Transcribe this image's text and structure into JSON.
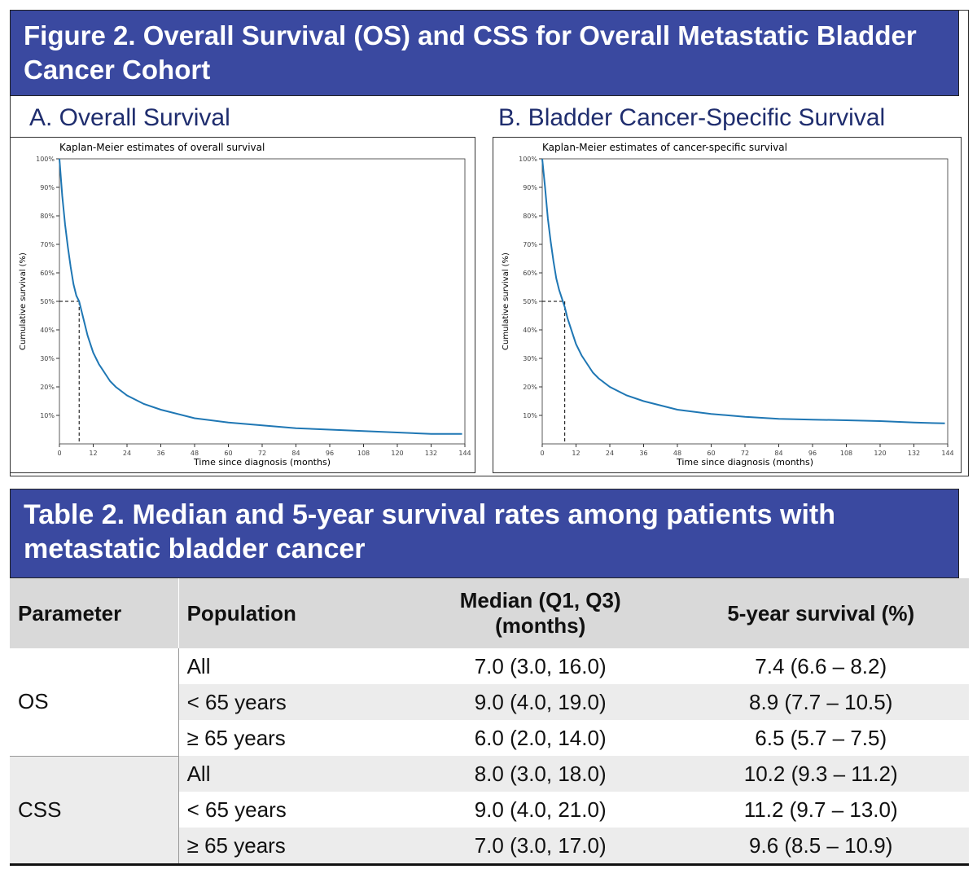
{
  "figure_title": "Figure 2. Overall Survival (OS) and CSS for Overall Metastatic Bladder Cancer Cohort",
  "chart_data": [
    {
      "type": "line",
      "panel_title": "A. Overall Survival",
      "title": "Kaplan-Meier estimates of overall survival",
      "xlabel": "Time since diagnosis (months)",
      "ylabel": "Cumulative survival (%)",
      "color": "#1f77b4",
      "x": [
        0,
        1,
        2,
        3,
        4,
        5,
        6,
        7,
        8,
        9,
        10,
        11,
        12,
        14,
        16,
        18,
        20,
        24,
        30,
        36,
        48,
        60,
        72,
        84,
        96,
        108,
        120,
        132,
        143
      ],
      "values": [
        100,
        87,
        77,
        69,
        62,
        56,
        52,
        50,
        46,
        42,
        38,
        35,
        32,
        28,
        25,
        22,
        20,
        17,
        14,
        12,
        9,
        7.5,
        6.5,
        5.5,
        5,
        4.5,
        4,
        3.5,
        3.5
      ],
      "median_line": {
        "x": 7,
        "y": 50
      },
      "xlim": [
        0,
        144
      ],
      "ylim": [
        0,
        100
      ],
      "xticks": [
        0,
        12,
        24,
        36,
        48,
        60,
        72,
        84,
        96,
        108,
        120,
        132,
        144
      ],
      "yticks": [
        {
          "value": 10,
          "label": "10%"
        },
        {
          "value": 20,
          "label": "20%"
        },
        {
          "value": 30,
          "label": "30%"
        },
        {
          "value": 40,
          "label": "40%"
        },
        {
          "value": 50,
          "label": "50%"
        },
        {
          "value": 60,
          "label": "60%"
        },
        {
          "value": 70,
          "label": "70%"
        },
        {
          "value": 80,
          "label": "80%"
        },
        {
          "value": 90,
          "label": "90%"
        },
        {
          "value": 100,
          "label": "100%"
        }
      ]
    },
    {
      "type": "line",
      "panel_title": "B. Bladder Cancer-Specific Survival",
      "title": "Kaplan-Meier estimates of cancer-specific survival",
      "xlabel": "Time since diagnosis (months)",
      "ylabel": "Cumulative survival (%)",
      "color": "#1f77b4",
      "x": [
        0,
        1,
        2,
        3,
        4,
        5,
        6,
        7,
        8,
        9,
        10,
        11,
        12,
        14,
        16,
        18,
        20,
        24,
        30,
        36,
        48,
        60,
        72,
        84,
        96,
        108,
        120,
        132,
        143
      ],
      "values": [
        100,
        90,
        79,
        71,
        64,
        58,
        54,
        51,
        48,
        44,
        41,
        38,
        35,
        31,
        28,
        25,
        23,
        20,
        17,
        15,
        12,
        10.5,
        9.5,
        8.8,
        8.5,
        8.3,
        8,
        7.5,
        7.2
      ],
      "median_line": {
        "x": 8,
        "y": 50
      },
      "xlim": [
        0,
        144
      ],
      "ylim": [
        0,
        100
      ],
      "xticks": [
        0,
        12,
        24,
        36,
        48,
        60,
        72,
        84,
        96,
        108,
        120,
        132,
        144
      ],
      "yticks": [
        {
          "value": 10,
          "label": "10%"
        },
        {
          "value": 20,
          "label": "20%"
        },
        {
          "value": 30,
          "label": "30%"
        },
        {
          "value": 40,
          "label": "40%"
        },
        {
          "value": 50,
          "label": "50%"
        },
        {
          "value": 60,
          "label": "60%"
        },
        {
          "value": 70,
          "label": "70%"
        },
        {
          "value": 80,
          "label": "80%"
        },
        {
          "value": 90,
          "label": "90%"
        },
        {
          "value": 100,
          "label": "100%"
        }
      ]
    }
  ],
  "table_title": "Table 2. Median and 5-year survival rates among patients with metastatic bladder cancer",
  "table": {
    "header": [
      "Parameter",
      "Population",
      "Median (Q1, Q3) (months)",
      "5-year survival (%)"
    ],
    "groups": [
      {
        "parameter": "OS",
        "rows": [
          [
            "All",
            "7.0 (3.0, 16.0)",
            "7.4 (6.6 – 8.2)"
          ],
          [
            "< 65 years",
            "9.0 (4.0, 19.0)",
            "8.9 (7.7 – 10.5)"
          ],
          [
            "≥ 65 years",
            "6.0 (2.0, 14.0)",
            "6.5 (5.7 – 7.5)"
          ]
        ]
      },
      {
        "parameter": "CSS",
        "rows": [
          [
            "All",
            "8.0 (3.0, 18.0)",
            "10.2 (9.3 – 11.2)"
          ],
          [
            "< 65 years",
            "9.0 (4.0, 21.0)",
            "11.2 (9.7 – 13.0)"
          ],
          [
            "≥ 65 years",
            "7.0 (3.0, 17.0)",
            "9.6 (8.5 – 10.9)"
          ]
        ]
      }
    ]
  }
}
